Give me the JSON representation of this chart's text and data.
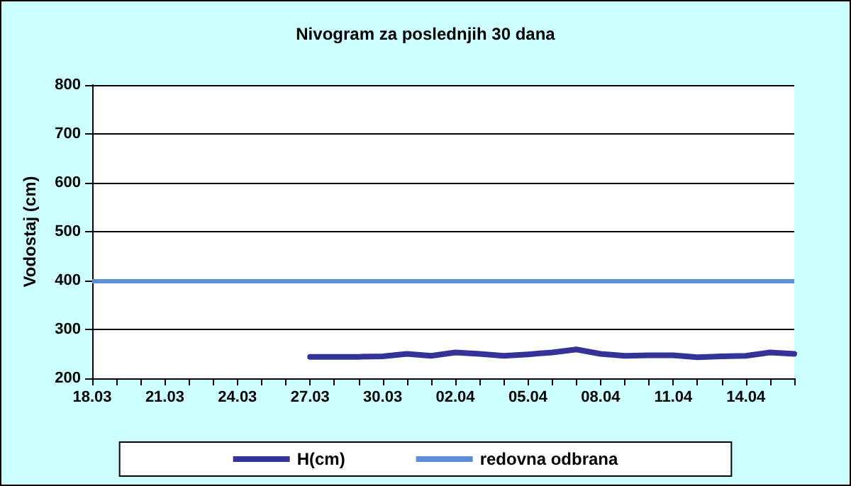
{
  "chart_data": {
    "type": "line",
    "title": "Nivogram za poslednjih 30 dana",
    "ylabel": "Vodostaj (cm)",
    "categories": [
      "18.03",
      null,
      null,
      "21.03",
      null,
      null,
      "24.03",
      null,
      null,
      "27.03",
      null,
      null,
      "30.03",
      null,
      null,
      "02.04",
      null,
      null,
      "05.04",
      null,
      null,
      "08.04",
      null,
      null,
      "11.04",
      null,
      null,
      "14.04",
      null,
      null
    ],
    "series": [
      {
        "name": "H(cm)",
        "color": "#333399",
        "values": [
          null,
          null,
          null,
          null,
          null,
          null,
          null,
          null,
          null,
          244,
          244,
          244,
          245,
          250,
          246,
          253,
          250,
          246,
          249,
          253,
          259,
          250,
          246,
          247,
          247,
          243,
          245,
          246,
          253,
          250
        ]
      }
    ],
    "ref_lines": [
      {
        "axis": "y",
        "value": 400,
        "label": "redovna odbrana",
        "color": "#5b8fd6"
      }
    ],
    "ylim": [
      200,
      800
    ],
    "yticks": [
      200,
      300,
      400,
      500,
      600,
      700,
      800
    ],
    "grid": "y",
    "legend": "bottom",
    "marker": "none",
    "line_style": "solid"
  }
}
